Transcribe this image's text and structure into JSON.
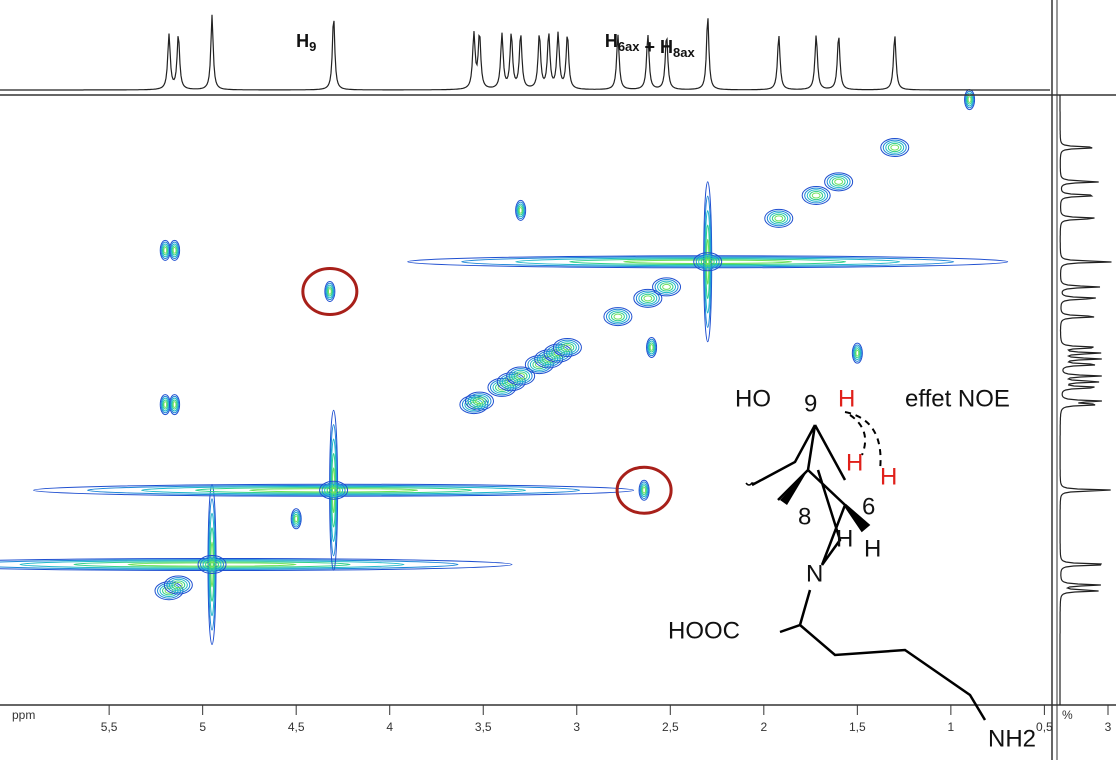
{
  "chart_data": {
    "type": "nmr-2d",
    "x_label": "ppm",
    "xlim": [
      6.03,
      0.47
    ],
    "ylim": [
      6.18,
      0.84
    ],
    "xticks": [
      {
        "value": 5.5,
        "label": "5,5"
      },
      5,
      {
        "value": 4.5,
        "label": "4,5"
      },
      4,
      {
        "value": 3.5,
        "label": "3,5"
      },
      3,
      {
        "value": 2.5,
        "label": "2,5"
      },
      2,
      {
        "value": 1.5,
        "label": "1,5"
      },
      1,
      {
        "value": 0.5,
        "label": "0,5"
      }
    ],
    "projection_label": "%",
    "projection_ticks": [
      3
    ],
    "annotations": [
      {
        "base": "H",
        "sub": "9",
        "x": 4.5
      },
      {
        "parts": [
          {
            "base": "H",
            "sub": "6ax"
          },
          {
            "base": " + H",
            "sub": "8ax"
          }
        ],
        "x": 2.85
      }
    ],
    "diagonal_peaks": [
      5.18,
      5.13,
      4.95,
      4.3,
      3.55,
      3.52,
      3.4,
      3.35,
      3.3,
      3.2,
      3.15,
      3.1,
      3.05,
      2.78,
      2.62,
      2.52,
      2.3,
      1.92,
      1.72,
      1.6,
      1.3
    ],
    "singlets": [
      4.95,
      4.3,
      2.3
    ],
    "cross_peaks": [
      {
        "x": 5.2,
        "y": 2.2
      },
      {
        "x": 5.15,
        "y": 2.2
      },
      {
        "x": 5.2,
        "y": 3.55
      },
      {
        "x": 5.15,
        "y": 3.55
      },
      {
        "x": 4.32,
        "y": 2.56
      },
      {
        "x": 2.64,
        "y": 4.3
      },
      {
        "x": 3.3,
        "y": 1.85
      },
      {
        "x": 1.5,
        "y": 3.1
      },
      {
        "x": 2.6,
        "y": 3.05
      },
      {
        "x": 4.5,
        "y": 4.55
      },
      {
        "x": 0.9,
        "y": 0.88
      }
    ],
    "highlighted": [
      {
        "x": 4.32,
        "y": 2.56
      },
      {
        "x": 2.64,
        "y": 4.3
      }
    ],
    "structure": {
      "labels": [
        "HO",
        "9",
        "H",
        "effet NOE",
        "H",
        "H",
        "8",
        "6",
        "H",
        "H",
        "N",
        "HOOC",
        "NH2"
      ]
    }
  }
}
